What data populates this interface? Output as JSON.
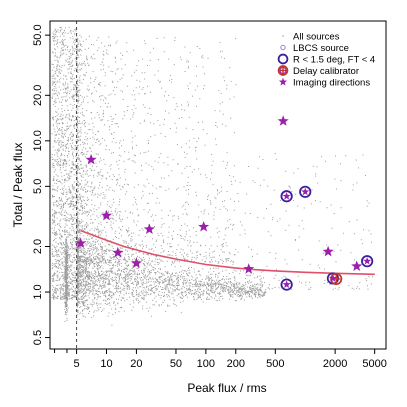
{
  "chart_data": {
    "type": "scatter",
    "xlabel": "Peak flux / rms",
    "ylabel": "Total / Peak flux",
    "x_scale": "log",
    "y_scale": "log",
    "xlim": [
      2.7,
      6500
    ],
    "ylim": [
      0.42,
      62
    ],
    "x_ticks": [
      {
        "value": 5,
        "label": "5"
      },
      {
        "value": 10,
        "label": "10"
      },
      {
        "value": 20,
        "label": "20"
      },
      {
        "value": 50,
        "label": "50"
      },
      {
        "value": 100,
        "label": "100"
      },
      {
        "value": 200,
        "label": "200"
      },
      {
        "value": 500,
        "label": "500"
      },
      {
        "value": 2000,
        "label": "2000"
      },
      {
        "value": 5000,
        "label": "5000"
      }
    ],
    "x_minor_ticks": [
      3,
      4
    ],
    "y_ticks": [
      {
        "value": 0.5,
        "label": "0.5"
      },
      {
        "value": 1.0,
        "label": "1.0"
      },
      {
        "value": 2.0,
        "label": "2.0"
      },
      {
        "value": 5.0,
        "label": "5.0"
      },
      {
        "value": 10.0,
        "label": "10.0"
      },
      {
        "value": 20.0,
        "label": "20.0"
      },
      {
        "value": 50.0,
        "label": "50.0"
      }
    ],
    "threshold_line": {
      "x": 5,
      "style": "dashed"
    },
    "curve": {
      "name": "",
      "color": "#e0506a",
      "x": [
        5.5,
        7,
        10,
        15,
        20,
        30,
        50,
        100,
        200,
        300,
        500,
        1000,
        2000,
        5000
      ],
      "y": [
        2.55,
        2.4,
        2.2,
        2.0,
        1.9,
        1.77,
        1.65,
        1.52,
        1.44,
        1.41,
        1.38,
        1.35,
        1.33,
        1.31
      ]
    },
    "legend": {
      "position": "top-right",
      "entries": [
        {
          "label": "All sources",
          "marker": "dot",
          "color": "#8c8c8c"
        },
        {
          "label": "LBCS source",
          "marker": "small-circle",
          "color": "#9b7fd6"
        },
        {
          "label": "R < 1.5 deg, FT < 4",
          "marker": "circle",
          "color": "#3a1f9e"
        },
        {
          "label": "Delay calibrator",
          "marker": "circle-cross",
          "color": "#c0392b"
        },
        {
          "label": "Imaging directions",
          "marker": "star",
          "color": "#9b1fa8"
        }
      ]
    },
    "series": [
      {
        "name": "Imaging directions",
        "marker": "star",
        "color": "#9b1fa8",
        "points": [
          {
            "x": 7,
            "y": 7.5
          },
          {
            "x": 10,
            "y": 3.2
          },
          {
            "x": 5.5,
            "y": 2.1
          },
          {
            "x": 13,
            "y": 1.82
          },
          {
            "x": 20,
            "y": 1.55
          },
          {
            "x": 27,
            "y": 2.6
          },
          {
            "x": 95,
            "y": 2.7
          },
          {
            "x": 270,
            "y": 1.42
          },
          {
            "x": 600,
            "y": 13.5
          },
          {
            "x": 1700,
            "y": 1.85
          },
          {
            "x": 3300,
            "y": 1.48
          }
        ]
      },
      {
        "name": "R < 1.5 deg, FT < 4",
        "marker": "circle",
        "color": "#3a1f9e",
        "points": [
          {
            "x": 650,
            "y": 1.12
          },
          {
            "x": 1900,
            "y": 1.23
          },
          {
            "x": 4200,
            "y": 1.6
          },
          {
            "x": 650,
            "y": 4.3
          },
          {
            "x": 1000,
            "y": 4.6
          }
        ]
      },
      {
        "name": "Delay calibrator",
        "marker": "circle-cross",
        "color": "#c0392b",
        "points": [
          {
            "x": 2050,
            "y": 1.22
          }
        ]
      }
    ]
  }
}
